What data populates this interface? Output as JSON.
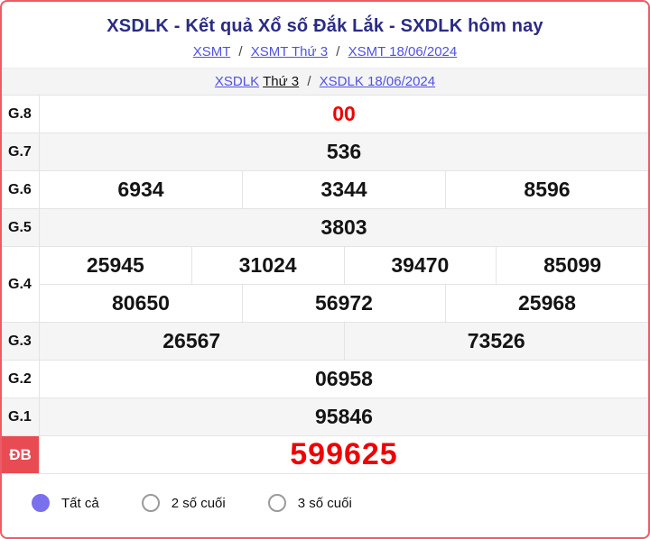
{
  "colors": {
    "card_border": "#ef5b65",
    "title_navy": "#2b2b85",
    "link_purple": "#5052e0",
    "accent_red": "#ee0202",
    "special_label_bg": "#e94b52",
    "radio_selected_purple": "#7a70ee",
    "row_shade_gray": "#f5f5f5"
  },
  "header": {
    "title": "XSDLK - Kết quả Xổ số Đắk Lắk - SXDLK hôm nay",
    "breadcrumb_xsmt": {
      "links": [
        {
          "label": "XSMT"
        },
        {
          "label": "XSMT Thứ 3"
        },
        {
          "label": "XSMT 18/06/2024"
        }
      ],
      "separator": "/"
    },
    "breadcrumb_xsdlk": {
      "station_link": "XSDLK",
      "weekday": "Thứ 3",
      "separator": "/",
      "date_link": "XSDLK 18/06/2024"
    }
  },
  "results": {
    "g8": {
      "label": "G.8",
      "values": [
        "00"
      ]
    },
    "g7": {
      "label": "G.7",
      "values": [
        "536"
      ]
    },
    "g6": {
      "label": "G.6",
      "values": [
        "6934",
        "3344",
        "8596"
      ]
    },
    "g5": {
      "label": "G.5",
      "values": [
        "3803"
      ]
    },
    "g4": {
      "label": "G.4",
      "row1": [
        "25945",
        "31024",
        "39470",
        "85099"
      ],
      "row2": [
        "80650",
        "56972",
        "25968"
      ]
    },
    "g3": {
      "label": "G.3",
      "values": [
        "26567",
        "73526"
      ]
    },
    "g2": {
      "label": "G.2",
      "values": [
        "06958"
      ]
    },
    "g1": {
      "label": "G.1",
      "values": [
        "95846"
      ]
    },
    "db": {
      "label": "ĐB",
      "values": [
        "599625"
      ]
    }
  },
  "filters": {
    "options": [
      {
        "label": "Tất cả",
        "selected": true
      },
      {
        "label": "2 số cuối",
        "selected": false
      },
      {
        "label": "3 số cuối",
        "selected": false
      }
    ]
  }
}
